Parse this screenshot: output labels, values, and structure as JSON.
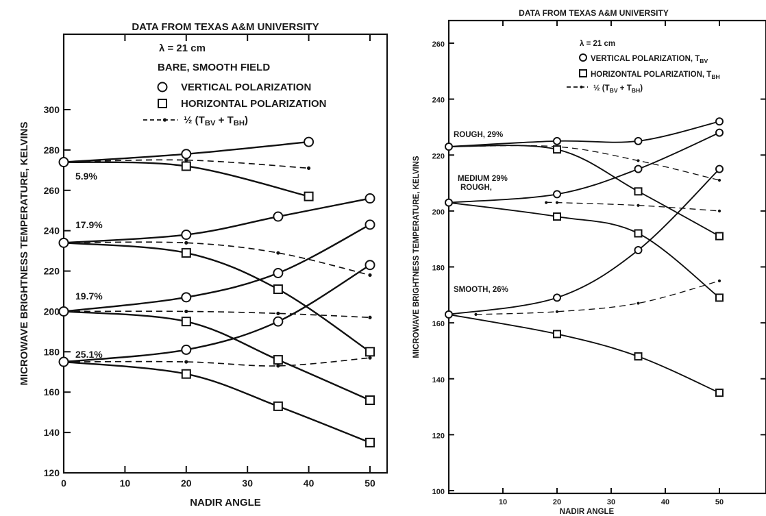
{
  "chart_data": [
    {
      "type": "line",
      "title": "DATA FROM TEXAS A&M UNIVERSITY",
      "xlabel": "NADIR ANGLE",
      "ylabel": "MICROWAVE BRIGHTNESS TEMPERATURE, KELVINS",
      "xlim": [
        0,
        55
      ],
      "ylim": [
        120,
        320
      ],
      "xticks": [
        "0",
        "10",
        "20",
        "30",
        "40",
        "50"
      ],
      "yticks": [
        "120",
        "140",
        "160",
        "180",
        "200",
        "220",
        "240",
        "260",
        "280",
        "300"
      ],
      "grid": false,
      "legend": {
        "position": "top-right",
        "lines": [
          "λ  =  21 cm",
          "BARE, SMOOTH FIELD"
        ],
        "vertical": "VERTICAL POLARIZATION",
        "horizontal": "HORIZONTAL POLARIZATION",
        "average_prefix": "½ (T",
        "average_sub1": "BV",
        "average_mid": "  +  T",
        "average_sub2": "BH",
        "average_suffix": ")"
      },
      "groups": [
        {
          "label": "5.9%",
          "vertical": {
            "x": [
              0,
              20,
              40
            ],
            "y": [
              274,
              278,
              284
            ]
          },
          "horizontal": {
            "x": [
              0,
              20,
              40
            ],
            "y": [
              274,
              272,
              257
            ]
          },
          "average": {
            "x": [
              0,
              20,
              40
            ],
            "y": [
              274,
              275,
              271
            ]
          }
        },
        {
          "label": "17.9%",
          "vertical": {
            "x": [
              0,
              20,
              35,
              50
            ],
            "y": [
              234,
              238,
              247,
              256
            ]
          },
          "horizontal": {
            "x": [
              0,
              20,
              35,
              50
            ],
            "y": [
              234,
              229,
              211,
              180
            ]
          },
          "average": {
            "x": [
              0,
              20,
              35,
              50
            ],
            "y": [
              234,
              234,
              229,
              218
            ]
          }
        },
        {
          "label": "19.7%",
          "vertical": {
            "x": [
              0,
              20,
              35,
              50
            ],
            "y": [
              200,
              207,
              219,
              243
            ]
          },
          "horizontal": {
            "x": [
              0,
              20,
              35,
              50
            ],
            "y": [
              200,
              195,
              176,
              156
            ]
          },
          "average": {
            "x": [
              0,
              20,
              35,
              50
            ],
            "y": [
              200,
              200,
              199,
              197
            ]
          }
        },
        {
          "label": "25.1%",
          "vertical": {
            "x": [
              0,
              20,
              35,
              50
            ],
            "y": [
              175,
              181,
              195,
              223
            ]
          },
          "horizontal": {
            "x": [
              0,
              20,
              35,
              50
            ],
            "y": [
              175,
              169,
              153,
              135
            ]
          },
          "average": {
            "x": [
              0,
              20,
              35,
              50
            ],
            "y": [
              175,
              175,
              173,
              177
            ]
          }
        }
      ]
    },
    {
      "type": "line",
      "title": "DATA FROM TEXAS A&M UNIVERSITY",
      "xlabel": "NADIR ANGLE",
      "ylabel": "MICROWAVE BRIGHTNESS TEMPERATURE, KELVINS",
      "xlim": [
        0,
        60
      ],
      "ylim": [
        100,
        270
      ],
      "xticks": [
        "10",
        "20",
        "30",
        "40",
        "50"
      ],
      "yticks": [
        "100",
        "120",
        "140",
        "160",
        "180",
        "200",
        "220",
        "240",
        "260"
      ],
      "grid": false,
      "legend": {
        "position": "top-right",
        "lines": [
          "λ =  21 cm"
        ],
        "vertical": "VERTICAL POLARIZATION, T",
        "vertical_sub": "BV",
        "horizontal": "HORIZONTAL POLARIZATION, T",
        "horizontal_sub": "BH",
        "average_prefix": "½ (T",
        "average_sub1": "BV",
        "average_mid": "  +  T",
        "average_sub2": "BH",
        "average_suffix": ")"
      },
      "groups": [
        {
          "label": "ROUGH, 29%",
          "vertical": {
            "x": [
              0,
              20,
              35,
              50
            ],
            "y": [
              223,
              225,
              225,
              232
            ]
          },
          "horizontal": {
            "x": [
              0,
              20,
              35,
              50
            ],
            "y": [
              223,
              222,
              207,
              191
            ]
          },
          "average": {
            "x": [
              0,
              20,
              35,
              50
            ],
            "y": [
              223,
              223,
              218,
              211
            ]
          }
        },
        {
          "label_lines": [
            "MEDIUM 29%",
            "ROUGH,"
          ],
          "vertical": {
            "x": [
              0,
              20,
              35,
              50
            ],
            "y": [
              203,
              206,
              215,
              228
            ]
          },
          "horizontal": {
            "x": [
              0,
              20,
              35,
              50
            ],
            "y": [
              203,
              198,
              192,
              169
            ]
          },
          "average": {
            "x": [
              18,
              20,
              35,
              50
            ],
            "y": [
              203,
              203,
              202,
              200
            ]
          }
        },
        {
          "label": "SMOOTH, 26%",
          "vertical": {
            "x": [
              0,
              20,
              35,
              50
            ],
            "y": [
              163,
              169,
              186,
              215
            ]
          },
          "horizontal": {
            "x": [
              0,
              20,
              35,
              50
            ],
            "y": [
              163,
              156,
              148,
              135
            ]
          },
          "average": {
            "x": [
              5,
              20,
              35,
              50
            ],
            "y": [
              163,
              164,
              167,
              175
            ]
          }
        }
      ]
    }
  ]
}
